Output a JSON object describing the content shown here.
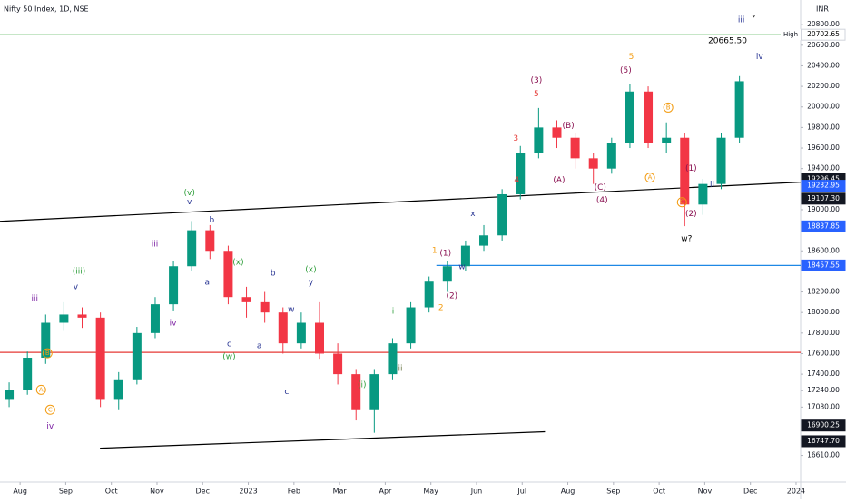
{
  "chart_data": {
    "type": "candlestick",
    "title": "Nifty 50 Index, 1D, NSE",
    "currency": "INR",
    "up_color": "#089981",
    "down_color": "#f23645",
    "x": [
      -0.24,
      0.16,
      0.56,
      0.96,
      1.36,
      1.76,
      2.16,
      2.56,
      2.96,
      3.36,
      3.76,
      4.16,
      4.56,
      4.96,
      5.36,
      5.76,
      6.16,
      6.56,
      6.96,
      7.36,
      7.76,
      8.16,
      8.56,
      8.96,
      9.36,
      9.76,
      10.16,
      10.56,
      10.96,
      11.36,
      11.76,
      12.16,
      12.56,
      12.96,
      13.36,
      13.76,
      14.16,
      14.56,
      14.96,
      15.36,
      15.76
    ],
    "open": [
      17150,
      17250,
      17560,
      17900,
      17980,
      17950,
      17150,
      17350,
      17800,
      18080,
      18450,
      18800,
      18600,
      18150,
      18100,
      18000,
      17700,
      17900,
      17600,
      17400,
      17050,
      17400,
      17700,
      18050,
      18300,
      18450,
      18650,
      18750,
      19150,
      19550,
      19800,
      19700,
      19500,
      19400,
      19650,
      20150,
      19650,
      19700,
      19050,
      19250,
      19700
    ],
    "high": [
      17320,
      17620,
      17980,
      18100,
      18050,
      18000,
      17420,
      17860,
      18150,
      18500,
      18890,
      18850,
      18650,
      18250,
      18200,
      18050,
      18000,
      18100,
      17700,
      17450,
      17450,
      17750,
      18100,
      18350,
      18500,
      18700,
      18850,
      19200,
      19620,
      19990,
      19870,
      19750,
      19550,
      19700,
      20220,
      20200,
      19850,
      19750,
      19300,
      19750,
      20300
    ],
    "low": [
      17080,
      17200,
      17500,
      17820,
      17850,
      17080,
      17050,
      17300,
      17750,
      18020,
      18400,
      18520,
      18080,
      17950,
      17900,
      17600,
      17650,
      17550,
      17300,
      16950,
      16830,
      17350,
      17650,
      18000,
      18200,
      18400,
      18600,
      18700,
      19100,
      19500,
      19600,
      19400,
      19250,
      19350,
      19600,
      19600,
      19550,
      18840,
      18950,
      19200,
      19650
    ],
    "close": [
      17250,
      17560,
      17900,
      17980,
      17950,
      17150,
      17350,
      17800,
      18080,
      18450,
      18800,
      18600,
      18150,
      18100,
      18000,
      17700,
      17900,
      17600,
      17400,
      17050,
      17400,
      17700,
      18050,
      18300,
      18450,
      18650,
      18750,
      19150,
      19550,
      19800,
      19700,
      19500,
      19400,
      19650,
      20150,
      19650,
      19700,
      19050,
      19250,
      19700,
      20250
    ],
    "xlim": [
      -0.44,
      17.1
    ],
    "ylim": [
      16350,
      21040
    ],
    "xticks": [
      {
        "value": 0,
        "label": "Aug"
      },
      {
        "value": 1,
        "label": "Sep"
      },
      {
        "value": 2,
        "label": "Oct"
      },
      {
        "value": 3,
        "label": "Nov"
      },
      {
        "value": 4,
        "label": "Dec"
      },
      {
        "value": 5,
        "label": "2023"
      },
      {
        "value": 6,
        "label": "Feb"
      },
      {
        "value": 7,
        "label": "Mar"
      },
      {
        "value": 8,
        "label": "Apr"
      },
      {
        "value": 9,
        "label": "May"
      },
      {
        "value": 10,
        "label": "Jun"
      },
      {
        "value": 11,
        "label": "Jul"
      },
      {
        "value": 12,
        "label": "Aug"
      },
      {
        "value": 13,
        "label": "Sep"
      },
      {
        "value": 14,
        "label": "Oct"
      },
      {
        "value": 15,
        "label": "Nov"
      },
      {
        "value": 16,
        "label": "Dec"
      },
      {
        "value": 17,
        "label": "2024"
      }
    ],
    "yticks": [
      {
        "value": 20800,
        "label": "20800.00"
      },
      {
        "value": 20600,
        "label": "20600.00"
      },
      {
        "value": 20400,
        "label": "20400.00"
      },
      {
        "value": 20200,
        "label": "20200.00"
      },
      {
        "value": 20000,
        "label": "20000.00"
      },
      {
        "value": 19800,
        "label": "19800.00"
      },
      {
        "value": 19600,
        "label": "19600.00"
      },
      {
        "value": 19400,
        "label": "19400.00"
      },
      {
        "value": 19000,
        "label": "19000.00"
      },
      {
        "value": 18600,
        "label": "18600.00"
      },
      {
        "value": 18200,
        "label": "18200.00"
      },
      {
        "value": 18000,
        "label": "18000.00"
      },
      {
        "value": 17800,
        "label": "17800.00"
      },
      {
        "value": 17600,
        "label": "17600.00"
      },
      {
        "value": 17400,
        "label": "17400.00"
      },
      {
        "value": 17240,
        "label": "17240.00"
      },
      {
        "value": 17080,
        "label": "17080.00"
      },
      {
        "value": 16610,
        "label": "16610.00"
      }
    ],
    "lines": [
      {
        "color": "#000000",
        "x": [
          -0.44,
          17.1
        ],
        "y": [
          18887,
          19268
        ]
      },
      {
        "color": "#000000",
        "x": [
          1.75,
          11.5
        ],
        "y": [
          16680,
          16840
        ]
      },
      {
        "color": "#e53935",
        "x": [
          -0.44,
          17.1
        ],
        "y": [
          17612,
          17612
        ]
      },
      {
        "color": "#1e88e5",
        "x": [
          9.12,
          17.1
        ],
        "y": [
          18457.55,
          18457.55
        ]
      },
      {
        "color": "#66bb6a",
        "x": [
          -0.44,
          17.1
        ],
        "y": [
          20702.65,
          20702.65
        ]
      }
    ],
    "price_tags": [
      {
        "value": 20702.65,
        "label": "20702.65",
        "tag": "High",
        "color": "#ffffff",
        "text_color": "#000000"
      },
      {
        "value": 19296.45,
        "label": "19296.45",
        "color": "#131722",
        "text_color": "#ffffff"
      },
      {
        "value": 19232.95,
        "label": "19232.95",
        "color": "#2962ff",
        "text_color": "#ffffff"
      },
      {
        "value": 19107.3,
        "label": "19107.30",
        "color": "#131722",
        "text_color": "#ffffff"
      },
      {
        "value": 18837.85,
        "label": "18837.85",
        "color": "#2962ff",
        "text_color": "#ffffff"
      },
      {
        "value": 18457.55,
        "label": "18457.55",
        "color": "#2962ff",
        "text_color": "#ffffff"
      },
      {
        "value": 16900.25,
        "label": "16900.25",
        "color": "#131722",
        "text_color": "#ffffff"
      },
      {
        "value": 16747.7,
        "label": "16747.70",
        "color": "#131722",
        "text_color": "#ffffff"
      }
    ],
    "annotations": [
      {
        "text": "(v)",
        "x": 3.71,
        "y": 19161,
        "color": "#2e9e3a"
      },
      {
        "text": "v",
        "x": 3.71,
        "y": 19073,
        "color": "#283593"
      },
      {
        "text": "b",
        "x": 4.2,
        "y": 18896,
        "color": "#283593"
      },
      {
        "text": "iii",
        "x": 2.95,
        "y": 18666,
        "color": "#7b1fa2"
      },
      {
        "text": "(iii)",
        "x": 1.29,
        "y": 18400,
        "color": "#2e9e3a"
      },
      {
        "text": "v",
        "x": 1.22,
        "y": 18249,
        "color": "#283593"
      },
      {
        "text": "iii",
        "x": 0.32,
        "y": 18134,
        "color": "#7b1fa2"
      },
      {
        "text": "(x)",
        "x": 4.78,
        "y": 18488,
        "color": "#2e9e3a"
      },
      {
        "text": "b",
        "x": 5.54,
        "y": 18382,
        "color": "#283593"
      },
      {
        "text": "(x)",
        "x": 6.37,
        "y": 18418,
        "color": "#2e9e3a"
      },
      {
        "text": "y",
        "x": 6.37,
        "y": 18293,
        "color": "#283593"
      },
      {
        "text": "w",
        "x": 5.94,
        "y": 18028,
        "color": "#283593"
      },
      {
        "text": "a",
        "x": 4.1,
        "y": 18293,
        "color": "#283593"
      },
      {
        "text": "a",
        "x": 5.24,
        "y": 17673,
        "color": "#283593"
      },
      {
        "text": "c",
        "x": 4.58,
        "y": 17691,
        "color": "#283593"
      },
      {
        "text": "(w)",
        "x": 4.58,
        "y": 17567,
        "color": "#2e9e3a"
      },
      {
        "text": "c",
        "x": 5.84,
        "y": 17231,
        "color": "#283593"
      },
      {
        "text": "iv",
        "x": 3.35,
        "y": 17895,
        "color": "#7b1fa2"
      },
      {
        "text": "iv",
        "x": 0.66,
        "y": 16894,
        "color": "#7b1fa2"
      },
      {
        "text": "(i)",
        "x": 7.49,
        "y": 17293,
        "color": "#2e9e3a"
      },
      {
        "text": "ii",
        "x": 8.33,
        "y": 17452,
        "color": "#6d7a4a"
      },
      {
        "text": "i",
        "x": 8.17,
        "y": 18010,
        "color": "#2e9e3a"
      },
      {
        "text": "1",
        "x": 9.08,
        "y": 18603,
        "color": "#f39c12"
      },
      {
        "text": "2",
        "x": 9.22,
        "y": 18045,
        "color": "#f39c12"
      },
      {
        "text": "x",
        "x": 9.92,
        "y": 18958,
        "color": "#283593"
      },
      {
        "text": "w",
        "x": 9.68,
        "y": 18444,
        "color": "#283593"
      },
      {
        "text": "(1)",
        "x": 9.32,
        "y": 18577,
        "color": "#880e4f"
      },
      {
        "text": "(2)",
        "x": 9.46,
        "y": 18161,
        "color": "#880e4f"
      },
      {
        "text": "3",
        "x": 10.86,
        "y": 19693,
        "color": "#e53935"
      },
      {
        "text": "4",
        "x": 10.88,
        "y": 19285,
        "color": "#e53935"
      },
      {
        "text": "(3)",
        "x": 11.31,
        "y": 20260,
        "color": "#880e4f"
      },
      {
        "text": "5",
        "x": 11.31,
        "y": 20127,
        "color": "#e53935"
      },
      {
        "text": "(4)",
        "x": 12.75,
        "y": 19091,
        "color": "#880e4f"
      },
      {
        "text": "(A)",
        "x": 11.81,
        "y": 19285,
        "color": "#880e4f"
      },
      {
        "text": "(C)",
        "x": 12.71,
        "y": 19215,
        "color": "#880e4f"
      },
      {
        "text": "(B)",
        "x": 12.01,
        "y": 19817,
        "color": "#880e4f"
      },
      {
        "text": "5",
        "x": 13.39,
        "y": 20490,
        "color": "#f39c12"
      },
      {
        "text": "(5)",
        "x": 13.27,
        "y": 20357,
        "color": "#880e4f"
      },
      {
        "text": "w?",
        "x": 14.6,
        "y": 18719,
        "color": "#000000"
      },
      {
        "text": "(2)",
        "x": 14.7,
        "y": 18958,
        "color": "#880e4f"
      },
      {
        "text": "(1)",
        "x": 14.7,
        "y": 19401,
        "color": "#880e4f"
      },
      {
        "text": "ii",
        "x": 15.16,
        "y": 19241,
        "color": "#283593"
      },
      {
        "text": "iii",
        "x": 15.8,
        "y": 20844,
        "color": "#283593"
      },
      {
        "text": "?",
        "x": 16.06,
        "y": 20862,
        "color": "#000000"
      },
      {
        "text": "iv",
        "x": 16.2,
        "y": 20490,
        "color": "#283593"
      },
      {
        "text": "20665.50",
        "x": 15.5,
        "y": 20641,
        "color": "#000000"
      },
      {
        "text": "B",
        "x": 14.2,
        "y": 19994,
        "color": "#f39c12",
        "circled": true
      },
      {
        "text": "A",
        "x": 13.8,
        "y": 19312,
        "color": "#f39c12",
        "circled": true
      },
      {
        "text": "C",
        "x": 14.5,
        "y": 19073,
        "color": "#f39c12",
        "circled": true
      },
      {
        "text": "A",
        "x": 0.46,
        "y": 17248,
        "color": "#f39c12",
        "circled": true
      },
      {
        "text": "B",
        "x": 0.6,
        "y": 17603,
        "color": "#f39c12",
        "circled": true
      },
      {
        "text": "C",
        "x": 0.66,
        "y": 17054,
        "color": "#f39c12",
        "circled": true
      }
    ]
  }
}
